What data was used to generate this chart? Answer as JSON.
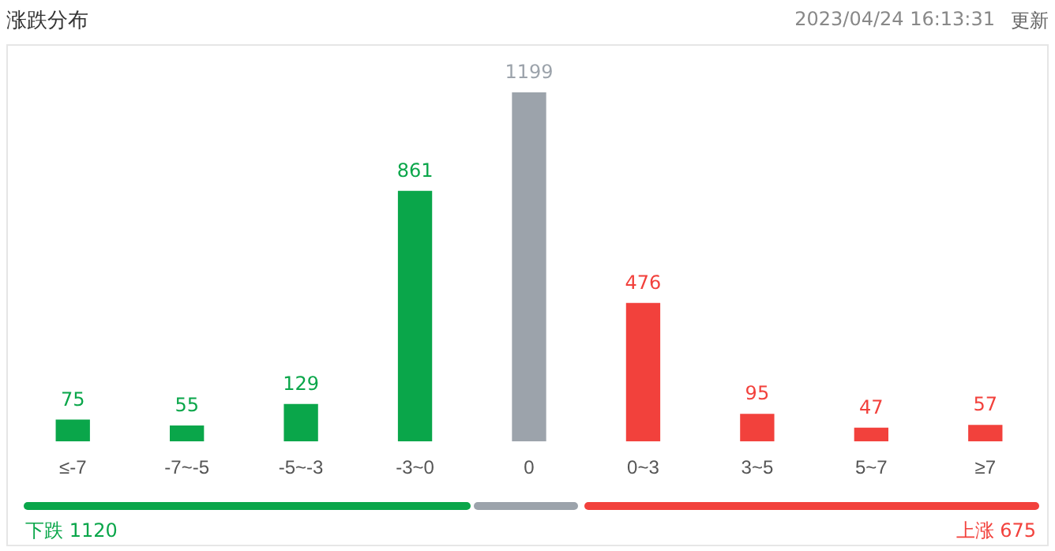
{
  "chart_data": {
    "type": "bar",
    "title": "涨跌分布",
    "categories": [
      "≤-7",
      "-7~-5",
      "-5~-3",
      "-3~0",
      "0",
      "0~3",
      "3~5",
      "5~7",
      "≥7"
    ],
    "values": [
      75,
      55,
      129,
      861,
      1199,
      476,
      95,
      47,
      57
    ],
    "colors": [
      "#0aa64a",
      "#0aa64a",
      "#0aa64a",
      "#0aa64a",
      "#9ca3ab",
      "#f2413c",
      "#f2413c",
      "#f2413c",
      "#f2413c"
    ],
    "data_labels": true,
    "grid": false,
    "legend": false,
    "annotations": [
      "2023/04/24 16:13:31",
      "更新",
      "下跌 1120",
      "上涨 675"
    ]
  }
}
